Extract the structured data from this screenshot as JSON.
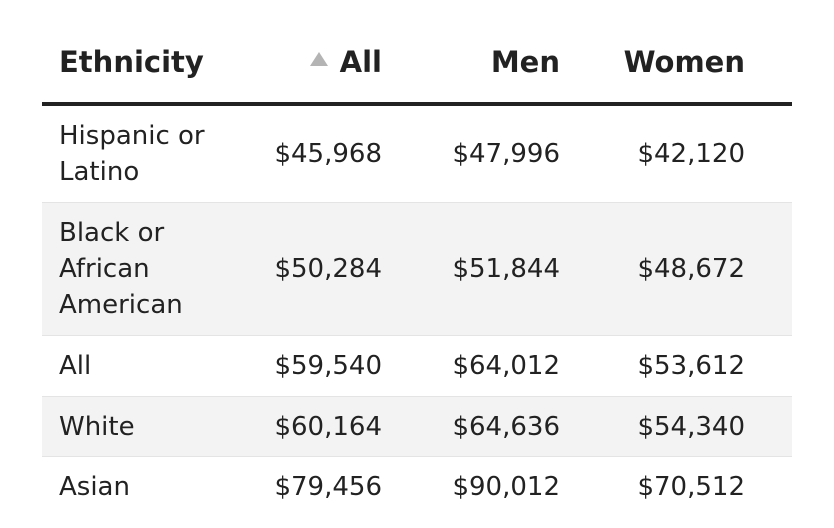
{
  "chart_data": {
    "type": "table",
    "columns": [
      "Ethnicity",
      "All",
      "Men",
      "Women"
    ],
    "sorted_column": "All",
    "sort_direction": "ascending",
    "rows": [
      {
        "ethnicity": "Hispanic or Latino",
        "all": "$45,968",
        "men": "$47,996",
        "women": "$42,120"
      },
      {
        "ethnicity": "Black or African American",
        "all": "$50,284",
        "men": "$51,844",
        "women": "$48,672"
      },
      {
        "ethnicity": "All",
        "all": "$59,540",
        "men": "$64,012",
        "women": "$53,612"
      },
      {
        "ethnicity": "White",
        "all": "$60,164",
        "men": "$64,636",
        "women": "$54,340"
      },
      {
        "ethnicity": "Asian",
        "all": "$79,456",
        "men": "$90,012",
        "women": "$70,512"
      }
    ]
  },
  "icons": {
    "sort": "sort-ascending-icon"
  },
  "colors": {
    "text": "#222222",
    "header_rule": "#222222",
    "alt_row": "#f3f3f3",
    "sort_icon": "#b4b4b4"
  }
}
